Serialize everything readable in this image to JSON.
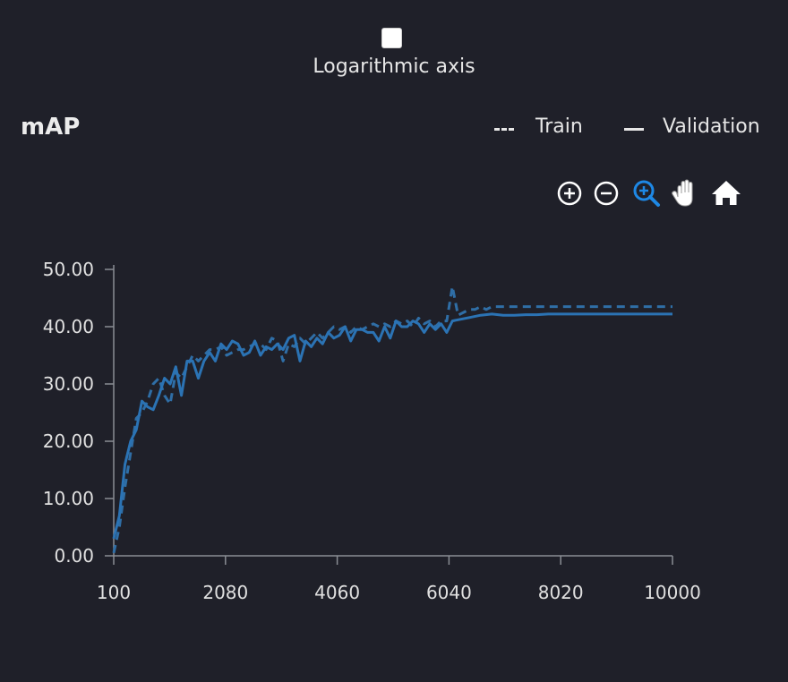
{
  "controls": {
    "log_axis_label": "Logarithmic axis",
    "log_axis_checked": false
  },
  "toolbar": {
    "icons": [
      "zoom-in-icon",
      "zoom-out-icon",
      "zoom-box-icon",
      "pan-hand-icon",
      "home-reset-icon"
    ],
    "active": "zoom-box-icon",
    "active_color": "#1e88e5"
  },
  "chart_data": {
    "type": "line",
    "title": "mAP",
    "xlabel": "",
    "ylabel": "",
    "xlim": [
      100,
      10000
    ],
    "ylim": [
      0,
      50
    ],
    "x_ticks": [
      "100",
      "2080",
      "4060",
      "6040",
      "8020",
      "10000"
    ],
    "y_ticks": [
      "0.00",
      "10.00",
      "20.00",
      "30.00",
      "40.00",
      "50.00"
    ],
    "legend": [
      {
        "label": "---",
        "name": "Train"
      },
      {
        "label": "—",
        "name": "Validation"
      }
    ],
    "legend_position": "top-right",
    "grid": false,
    "series": [
      {
        "name": "Train",
        "style": "dashed",
        "color": "#2f6ea6",
        "x": [
          100,
          200,
          300,
          400,
          500,
          600,
          700,
          800,
          900,
          1000,
          1100,
          1200,
          1300,
          1400,
          1500,
          1600,
          1700,
          1800,
          1900,
          2000,
          2100,
          2200,
          2300,
          2400,
          2500,
          2600,
          2700,
          2800,
          2900,
          3000,
          3100,
          3200,
          3300,
          3400,
          3500,
          3600,
          3700,
          3800,
          3900,
          4000,
          4100,
          4200,
          4300,
          4400,
          4500,
          4600,
          4700,
          4800,
          4900,
          5000,
          5100,
          5200,
          5300,
          5400,
          5500,
          5600,
          5700,
          5800,
          5900,
          6000,
          6100,
          6200,
          6300,
          6400,
          6500,
          6600,
          6700,
          6800,
          6900,
          7000,
          7200,
          7400,
          7600,
          7800,
          8000,
          8200,
          8400,
          8600,
          8800,
          9000,
          9200,
          9400,
          9600,
          9800,
          10000
        ],
        "y": [
          0.5,
          5,
          12,
          18,
          24,
          25,
          27,
          30,
          31,
          28,
          26.5,
          32,
          31,
          33,
          35,
          34,
          35,
          36,
          36,
          36.5,
          35,
          35.5,
          36,
          36,
          36.5,
          37,
          37,
          36,
          38,
          37.5,
          34,
          37,
          36.5,
          38,
          37,
          38,
          39,
          38,
          39,
          40,
          39.5,
          40,
          39,
          40,
          39.5,
          40,
          40.5,
          40,
          40.5,
          40,
          41,
          40.5,
          41,
          40,
          41.5,
          40.5,
          41,
          40,
          41,
          41,
          47,
          42,
          42.5,
          43,
          43,
          43.5,
          43,
          43.5,
          43.5,
          43.5,
          43.5,
          43.5,
          43.5,
          43.5,
          43.5,
          43.5,
          43.5,
          43.5,
          43.5,
          43.5,
          43.5,
          43.5,
          43.5,
          43.5,
          43.5
        ]
      },
      {
        "name": "Validation",
        "style": "solid",
        "color": "#2b73b4",
        "x": [
          100,
          200,
          300,
          400,
          500,
          600,
          700,
          800,
          900,
          1000,
          1100,
          1200,
          1300,
          1400,
          1500,
          1600,
          1700,
          1800,
          1900,
          2000,
          2100,
          2200,
          2300,
          2400,
          2500,
          2600,
          2700,
          2800,
          2900,
          3000,
          3100,
          3200,
          3300,
          3400,
          3500,
          3600,
          3700,
          3800,
          3900,
          4000,
          4100,
          4200,
          4300,
          4400,
          4500,
          4600,
          4700,
          4800,
          4900,
          5000,
          5100,
          5200,
          5300,
          5400,
          5500,
          5600,
          5700,
          5800,
          5900,
          6000,
          6100,
          6200,
          6400,
          6600,
          6800,
          7000,
          7200,
          7400,
          7600,
          7800,
          8000,
          8200,
          8400,
          8600,
          8800,
          9000,
          9200,
          9400,
          9600,
          9800,
          10000
        ],
        "y": [
          3,
          7,
          16,
          20,
          22,
          27,
          26,
          25.5,
          28,
          31,
          30,
          33,
          28,
          34,
          34,
          31,
          34,
          35.5,
          34,
          37,
          36,
          37.5,
          37,
          35,
          35.5,
          37.5,
          35,
          36.5,
          36,
          37,
          36,
          38,
          38.5,
          34,
          37.5,
          36.5,
          38,
          37,
          39,
          38,
          38.5,
          40,
          37.5,
          39.5,
          39.5,
          39,
          39,
          37.5,
          40,
          38,
          41,
          40,
          40,
          41,
          40.5,
          39,
          40.5,
          39.5,
          40.5,
          39,
          41,
          41.2,
          41.6,
          42,
          42.2,
          42,
          42,
          42.1,
          42.1,
          42.2,
          42.2,
          42.2,
          42.2,
          42.2,
          42.2,
          42.2,
          42.2,
          42.2,
          42.2,
          42.2,
          42.2
        ]
      }
    ]
  }
}
